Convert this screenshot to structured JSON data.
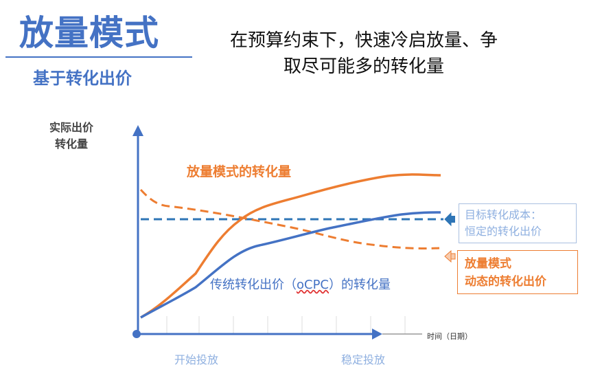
{
  "header": {
    "title": "放量模式",
    "subtitle": "基于转化出价",
    "headline_line1": "在预算约束下，快速冷启放量、争",
    "headline_line2": "取尽可能多的转化量"
  },
  "axes": {
    "y_label_line1": "实际出价",
    "y_label_line2": "转化量",
    "x_label": "时间（日期）",
    "x_tick_start": "开始投放",
    "x_tick_stable": "稳定投放"
  },
  "annotations": {
    "boost_conversions": "放量模式的转化量",
    "ocpc_prefix": "传统转化出价（",
    "ocpc_term": "oCPC",
    "ocpc_suffix": "）的转化量",
    "target_cost_line1": "目标转化成本：",
    "target_cost_line2": "恒定的转化出价",
    "dynamic_bid_line1": "放量模式",
    "dynamic_bid_line2": "动态的转化出价"
  },
  "colors": {
    "blue": "#4472c4",
    "orange": "#ed7d31",
    "dashed_blue": "#2e75b6",
    "light_blue": "#8fb0e0"
  }
}
